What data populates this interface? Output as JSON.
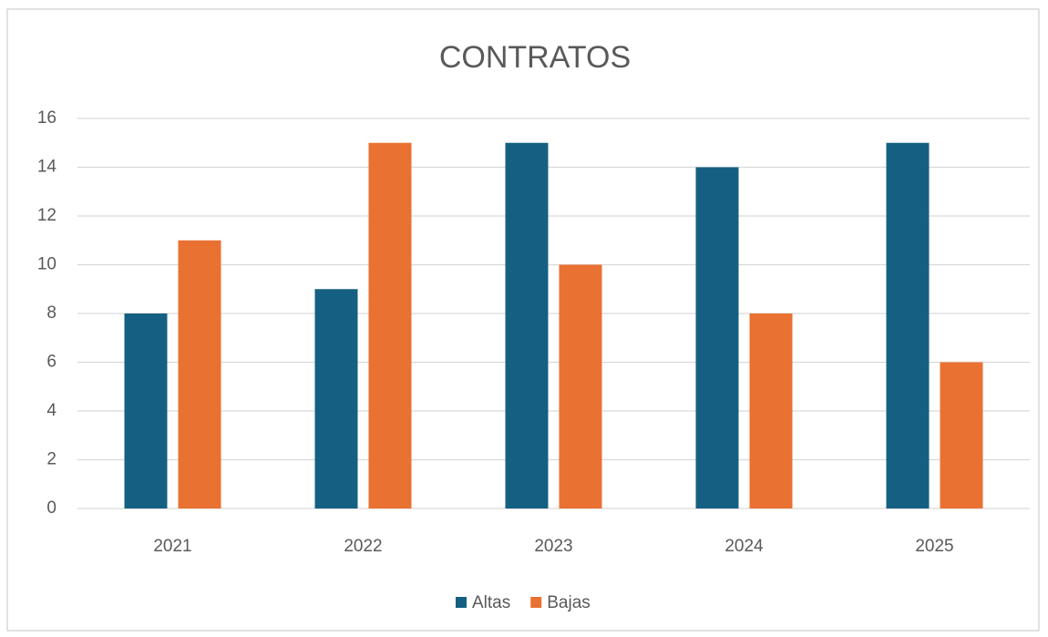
{
  "chart_data": {
    "type": "bar",
    "title": "CONTRATOS",
    "categories": [
      "2021",
      "2022",
      "2023",
      "2024",
      "2025"
    ],
    "series": [
      {
        "name": "Altas",
        "color": "#156082",
        "values": [
          8,
          9,
          15,
          14,
          15
        ]
      },
      {
        "name": "Bajas",
        "color": "#e97132",
        "values": [
          11,
          15,
          10,
          8,
          6
        ]
      }
    ],
    "ylim": [
      0,
      16
    ],
    "yticks": [
      0,
      2,
      4,
      6,
      8,
      10,
      12,
      14,
      16
    ],
    "grid": true,
    "legend": "bottom"
  }
}
